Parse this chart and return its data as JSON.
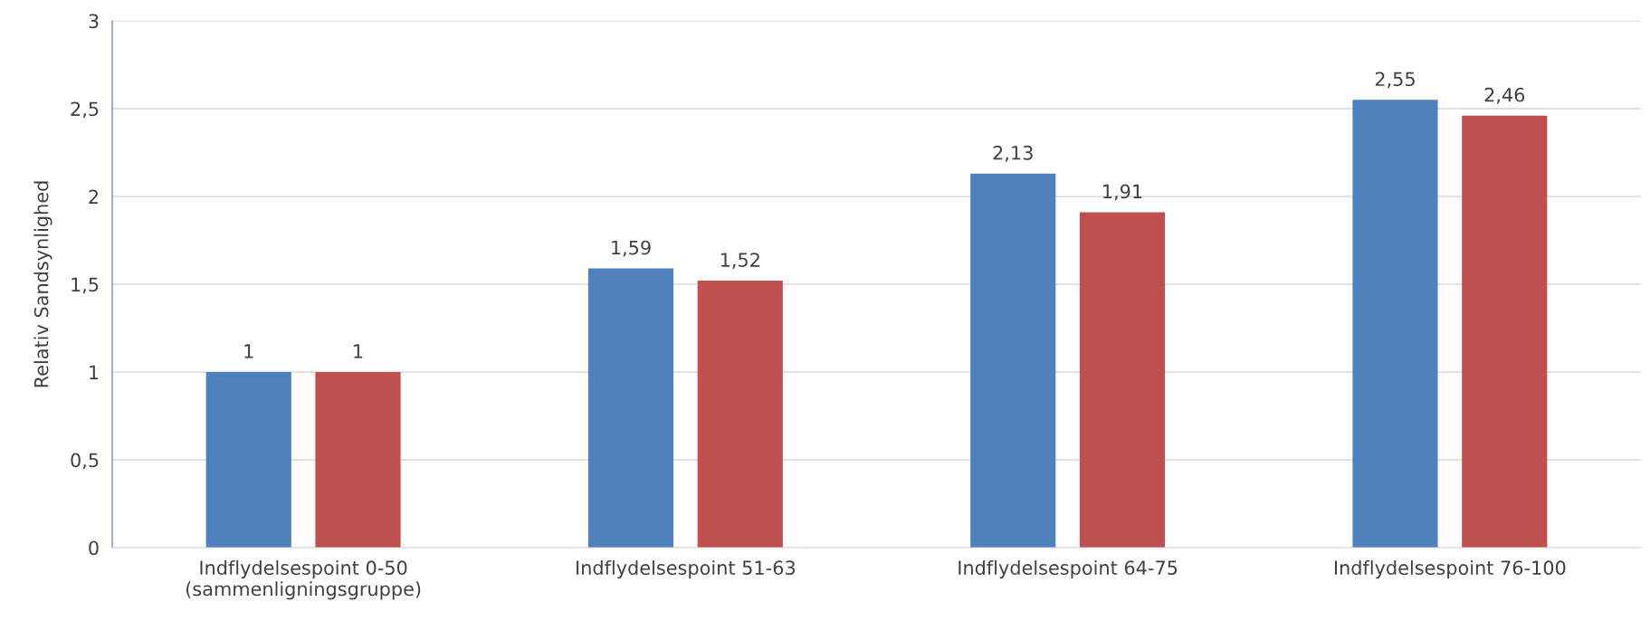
{
  "chart_data": {
    "type": "bar",
    "ylabel": "Relativ Sandsynlighed",
    "categories": [
      "Indflydelsespoint 0-50\n(sammenligningsgruppe)",
      "Indflydelsespoint 51-63",
      "Indflydelsespoint 64-75",
      "Indflydelsespoint 76-100"
    ],
    "series": [
      {
        "color": "#4f81bd",
        "values": [
          1,
          1.59,
          2.13,
          2.55
        ],
        "value_labels": [
          "1",
          "1,59",
          "2,13",
          "2,55"
        ]
      },
      {
        "color": "#c0504d",
        "values": [
          1,
          1.52,
          1.91,
          2.46
        ],
        "value_labels": [
          "1",
          "1,52",
          "1,91",
          "2,46"
        ]
      }
    ],
    "ylim": [
      0,
      3
    ],
    "yticks": [
      0,
      {
        "value": 0.5,
        "label": "0,5"
      },
      1,
      {
        "value": 1.5,
        "label": "1,5"
      },
      2,
      {
        "value": 2.5,
        "label": "2,5"
      },
      3
    ],
    "grid": "y",
    "legend": false
  }
}
